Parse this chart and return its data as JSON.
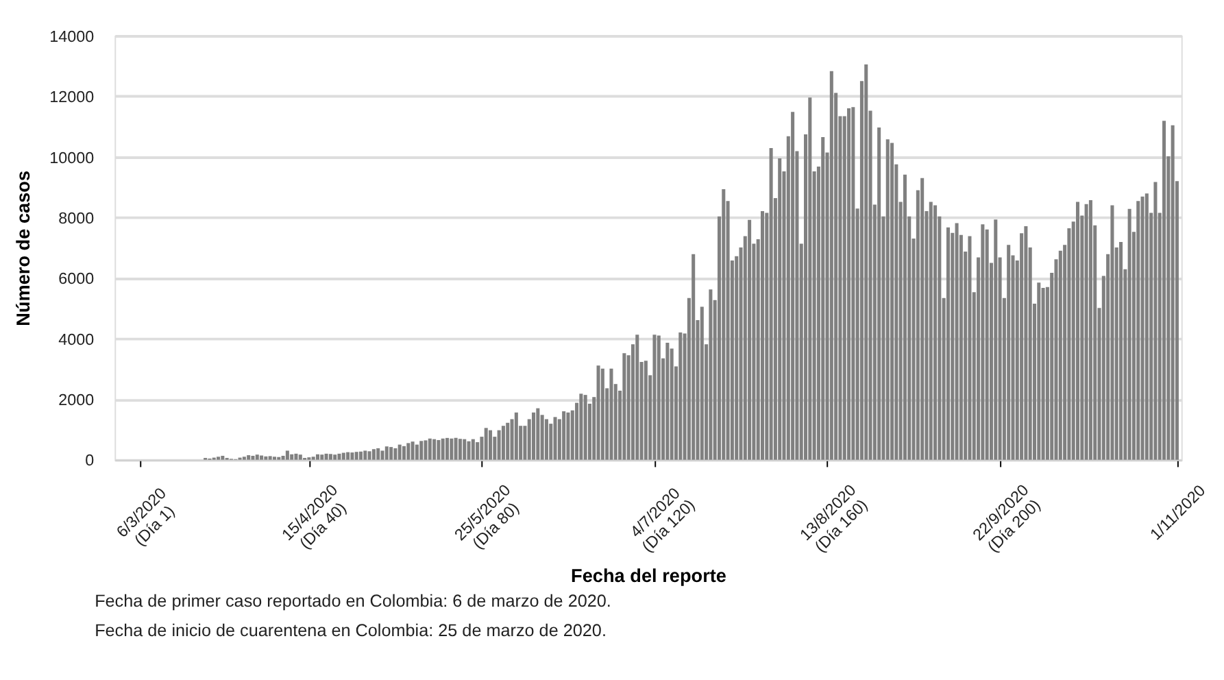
{
  "chart_data": {
    "type": "bar",
    "xlabel": "Fecha del reporte",
    "ylabel": "Número de casos",
    "x": [
      "2020-03-06",
      "2020-03-07",
      "2020-03-08",
      "2020-03-09",
      "2020-03-10",
      "2020-03-11",
      "2020-03-12",
      "2020-03-13",
      "2020-03-14",
      "2020-03-15",
      "2020-03-16",
      "2020-03-17",
      "2020-03-18",
      "2020-03-19",
      "2020-03-20",
      "2020-03-21",
      "2020-03-22",
      "2020-03-23",
      "2020-03-24",
      "2020-03-25",
      "2020-03-26",
      "2020-03-27",
      "2020-03-28",
      "2020-03-29",
      "2020-03-30",
      "2020-03-31",
      "2020-04-01",
      "2020-04-02",
      "2020-04-03",
      "2020-04-04",
      "2020-04-05",
      "2020-04-06",
      "2020-04-07",
      "2020-04-08",
      "2020-04-09",
      "2020-04-10",
      "2020-04-11",
      "2020-04-12",
      "2020-04-13",
      "2020-04-14",
      "2020-04-15",
      "2020-04-16",
      "2020-04-17",
      "2020-04-18",
      "2020-04-19",
      "2020-04-20",
      "2020-04-21",
      "2020-04-22",
      "2020-04-23",
      "2020-04-24",
      "2020-04-25",
      "2020-04-26",
      "2020-04-27",
      "2020-04-28",
      "2020-04-29",
      "2020-04-30",
      "2020-05-01",
      "2020-05-02",
      "2020-05-03",
      "2020-05-04",
      "2020-05-05",
      "2020-05-06",
      "2020-05-07",
      "2020-05-08",
      "2020-05-09",
      "2020-05-10",
      "2020-05-11",
      "2020-05-12",
      "2020-05-13",
      "2020-05-14",
      "2020-05-15",
      "2020-05-16",
      "2020-05-17",
      "2020-05-18",
      "2020-05-19",
      "2020-05-20",
      "2020-05-21",
      "2020-05-22",
      "2020-05-23",
      "2020-05-24",
      "2020-05-25",
      "2020-05-26",
      "2020-05-27",
      "2020-05-28",
      "2020-05-29",
      "2020-05-30",
      "2020-05-31",
      "2020-06-01",
      "2020-06-02",
      "2020-06-03",
      "2020-06-04",
      "2020-06-05",
      "2020-06-06",
      "2020-06-07",
      "2020-06-08",
      "2020-06-09",
      "2020-06-10",
      "2020-06-11",
      "2020-06-12",
      "2020-06-13",
      "2020-06-14",
      "2020-06-15",
      "2020-06-16",
      "2020-06-17",
      "2020-06-18",
      "2020-06-19",
      "2020-06-20",
      "2020-06-21",
      "2020-06-22",
      "2020-06-23",
      "2020-06-24",
      "2020-06-25",
      "2020-06-26",
      "2020-06-27",
      "2020-06-28",
      "2020-06-29",
      "2020-06-30",
      "2020-07-01",
      "2020-07-02",
      "2020-07-03",
      "2020-07-04",
      "2020-07-05",
      "2020-07-06",
      "2020-07-07",
      "2020-07-08",
      "2020-07-09",
      "2020-07-10",
      "2020-07-11",
      "2020-07-12",
      "2020-07-13",
      "2020-07-14",
      "2020-07-15",
      "2020-07-16",
      "2020-07-17",
      "2020-07-18",
      "2020-07-19",
      "2020-07-20",
      "2020-07-21",
      "2020-07-22",
      "2020-07-23",
      "2020-07-24",
      "2020-07-25",
      "2020-07-26",
      "2020-07-27",
      "2020-07-28",
      "2020-07-29",
      "2020-07-30",
      "2020-07-31",
      "2020-08-01",
      "2020-08-02",
      "2020-08-03",
      "2020-08-04",
      "2020-08-05",
      "2020-08-06",
      "2020-08-07",
      "2020-08-08",
      "2020-08-09",
      "2020-08-10",
      "2020-08-11",
      "2020-08-12",
      "2020-08-13",
      "2020-08-14",
      "2020-08-15",
      "2020-08-16",
      "2020-08-17",
      "2020-08-18",
      "2020-08-19",
      "2020-08-20",
      "2020-08-21",
      "2020-08-22",
      "2020-08-23",
      "2020-08-24",
      "2020-08-25",
      "2020-08-26",
      "2020-08-27",
      "2020-08-28",
      "2020-08-29",
      "2020-08-30",
      "2020-08-31",
      "2020-09-01",
      "2020-09-02",
      "2020-09-03",
      "2020-09-04",
      "2020-09-05",
      "2020-09-06",
      "2020-09-07",
      "2020-09-08",
      "2020-09-09",
      "2020-09-10",
      "2020-09-11",
      "2020-09-12",
      "2020-09-13",
      "2020-09-14",
      "2020-09-15",
      "2020-09-16",
      "2020-09-17",
      "2020-09-18",
      "2020-09-19",
      "2020-09-20",
      "2020-09-21",
      "2020-09-22",
      "2020-09-23",
      "2020-09-24",
      "2020-09-25",
      "2020-09-26",
      "2020-09-27",
      "2020-09-28",
      "2020-09-29",
      "2020-09-30",
      "2020-10-01",
      "2020-10-02",
      "2020-10-03",
      "2020-10-04",
      "2020-10-05",
      "2020-10-06",
      "2020-10-07",
      "2020-10-08",
      "2020-10-09",
      "2020-10-10",
      "2020-10-11",
      "2020-10-12",
      "2020-10-13",
      "2020-10-14",
      "2020-10-15",
      "2020-10-16",
      "2020-10-17",
      "2020-10-18",
      "2020-10-19",
      "2020-10-20",
      "2020-10-21",
      "2020-10-22",
      "2020-10-23",
      "2020-10-24",
      "2020-10-25",
      "2020-10-26",
      "2020-10-27",
      "2020-10-28",
      "2020-10-29",
      "2020-10-30",
      "2020-10-31",
      "2020-11-01"
    ],
    "values": [
      0,
      0,
      0,
      0,
      0,
      0,
      0,
      0,
      0,
      0,
      0,
      0,
      0,
      0,
      0,
      60,
      40,
      70,
      100,
      130,
      60,
      30,
      20,
      70,
      100,
      150,
      130,
      170,
      140,
      110,
      120,
      100,
      90,
      130,
      300,
      180,
      200,
      170,
      60,
      80,
      100,
      180,
      170,
      200,
      190,
      170,
      200,
      230,
      250,
      240,
      260,
      270,
      300,
      280,
      350,
      380,
      300,
      440,
      420,
      380,
      500,
      450,
      550,
      600,
      500,
      620,
      640,
      700,
      680,
      650,
      700,
      720,
      700,
      720,
      690,
      680,
      610,
      680,
      580,
      760,
      1050,
      975,
      760,
      975,
      1120,
      1220,
      1340,
      1560,
      1120,
      1120,
      1340,
      1560,
      1700,
      1480,
      1340,
      1190,
      1410,
      1340,
      1600,
      1560,
      1630,
      1880,
      2180,
      2140,
      1850,
      2070,
      3110,
      3010,
      2360,
      3010,
      2500,
      2280,
      3520,
      3450,
      3810,
      4130,
      3230,
      3270,
      2790,
      4130,
      4100,
      3350,
      3860,
      3670,
      3080,
      4200,
      4170,
      5340,
      6790,
      4610,
      5050,
      3810,
      5620,
      5270,
      8030,
      8930,
      8540,
      6580,
      6720,
      7010,
      7380,
      7920,
      7130,
      7280,
      8210,
      8150,
      10290,
      8640,
      9950,
      9520,
      10680,
      11480,
      10190,
      7130,
      10740,
      11960,
      9520,
      9680,
      10650,
      10140,
      12830,
      12110,
      11340,
      11340,
      11600,
      11640,
      8290,
      12500,
      13050,
      11520,
      8420,
      10970,
      8030,
      10580,
      10460,
      9750,
      8510,
      9410,
      8030,
      7300,
      8900,
      9300,
      8210,
      8510,
      8400,
      8030,
      5340,
      7670,
      7490,
      7810,
      7420,
      6870,
      7380,
      5530,
      6680,
      7770,
      7600,
      6500,
      7930,
      6680,
      5340,
      7090,
      6750,
      6580,
      7480,
      7710,
      7010,
      5150,
      5850,
      5670,
      5700,
      6170,
      6620,
      6900,
      7090,
      7640,
      7860,
      8510,
      8060,
      8440,
      8570,
      7740,
      5010,
      6070,
      6790,
      8400,
      7010,
      7190,
      6290,
      8280,
      7520,
      8540,
      8690,
      8790,
      8150,
      9170,
      8150,
      11190,
      10020,
      11040,
      9200
    ],
    "color": "#808080",
    "xlim": [
      "2020-02-29",
      "2020-11-02"
    ],
    "xticks": [
      {
        "value": "2020-03-06",
        "label": "6/3/2020\n(Día 1)"
      },
      {
        "value": "2020-04-14",
        "label": "15/4/2020\n(Día 40)"
      },
      {
        "value": "2020-05-24",
        "label": "25/5/2020\n(Día 80)"
      },
      {
        "value": "2020-07-03",
        "label": "4/7/2020\n(Día 120)"
      },
      {
        "value": "2020-08-12",
        "label": "13/8/2020\n(Día 160)"
      },
      {
        "value": "2020-09-21",
        "label": "22/9/2020\n(Día 200)"
      },
      {
        "value": "2020-11-01",
        "label": "1/11/2020"
      }
    ],
    "ylim": [
      0,
      14000
    ],
    "yticks": [
      0,
      2000,
      4000,
      6000,
      8000,
      10000,
      12000,
      14000
    ],
    "grid": "y",
    "annotations": [
      "Fecha de primer caso reportado en Colombia: 6 de marzo de 2020.",
      "Fecha de inicio de cuarentena en Colombia: 25 de marzo de 2020."
    ]
  }
}
